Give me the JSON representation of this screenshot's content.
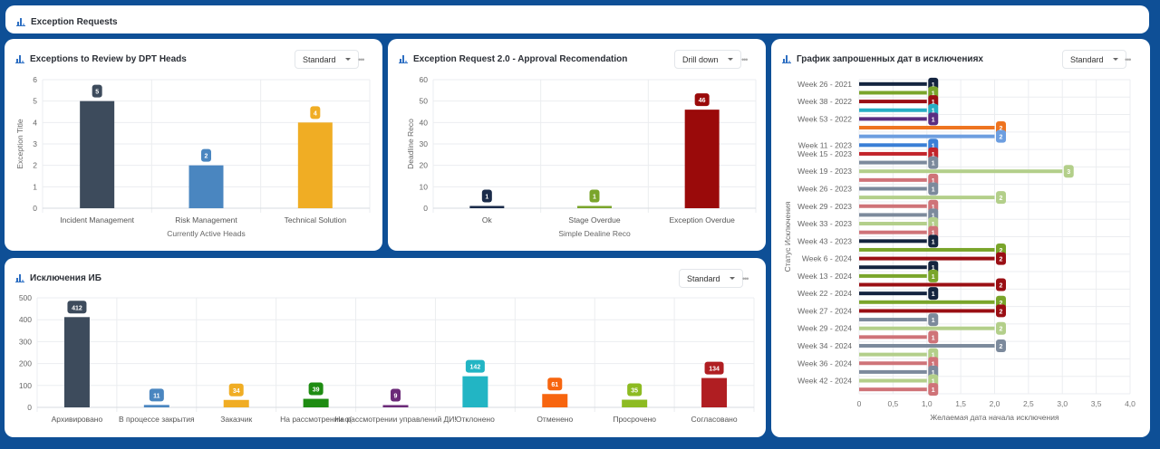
{
  "dashboard": {
    "title": "Exception Requests"
  },
  "panels": [
    {
      "title": "Exceptions to Review by DPT Heads",
      "view": "Standard"
    },
    {
      "title": "Exception Request 2.0 - Approval Recomendation",
      "view": "Drill down"
    },
    {
      "title": "График запрошенных дат в исключениях",
      "view": "Standard"
    },
    {
      "title": "Исключения ИБ",
      "view": "Standard"
    }
  ],
  "more_label": "•••",
  "chart_data": [
    {
      "type": "bar",
      "title": "Exceptions to Review by DPT Heads",
      "xlabel": "Currently Active Heads",
      "ylabel": "Exception Title",
      "ylim": [
        0,
        6
      ],
      "yticks": [
        0,
        1,
        2,
        3,
        4,
        5,
        6
      ],
      "categories": [
        "Incident Management",
        "Risk Management",
        "Technical Solution"
      ],
      "values": [
        5,
        2,
        4
      ],
      "colors": [
        "#3d4b5c",
        "#4a86c0",
        "#f0ad24"
      ],
      "grid": true
    },
    {
      "type": "bar",
      "title": "Exception Request 2.0 - Approval Recomendation",
      "xlabel": "Simple Dealine Reco",
      "ylabel": "Deadline Reco",
      "ylim": [
        0,
        60
      ],
      "yticks": [
        0,
        10,
        20,
        30,
        40,
        50,
        60
      ],
      "categories": [
        "Ok",
        "Stage Overdue",
        "Exception Overdue"
      ],
      "values": [
        1,
        1,
        46
      ],
      "colors": [
        "#1a2b4a",
        "#7aa52b",
        "#9a0a0a"
      ],
      "grid": true
    },
    {
      "type": "bar",
      "orientation": "horizontal",
      "title": "График запрошенных дат в исключениях",
      "xlabel": "Желаемая дата начала исключения",
      "ylabel": "Статус Исключения",
      "xlim": [
        0,
        4
      ],
      "xticks": [
        "0",
        "0,5",
        "1,0",
        "1,5",
        "2,0",
        "2,5",
        "3,0",
        "3,5",
        "4,0"
      ],
      "category_labels": [
        "Week 26 - 2021",
        "Week 38 - 2022",
        "Week 53 - 2022",
        "Week 11 - 2023",
        "Week 15 - 2023",
        "Week 19 - 2023",
        "Week 26 - 2023",
        "Week 29 - 2023",
        "Week 33 - 2023",
        "Week 43 - 2023",
        "Week 6 - 2024",
        "Week 13 - 2024",
        "Week 22 - 2024",
        "Week 27 - 2024",
        "Week 29 - 2024",
        "Week 34 - 2024",
        "Week 36 - 2024",
        "Week 42 - 2024"
      ],
      "bars": [
        {
          "value": 1,
          "color": "#14243f"
        },
        {
          "value": 1,
          "color": "#7aa52b"
        },
        {
          "value": 1,
          "color": "#9a0f14"
        },
        {
          "value": 1,
          "color": "#27aec4"
        },
        {
          "value": 1,
          "color": "#5a2d82"
        },
        {
          "value": 2,
          "color": "#ee7420"
        },
        {
          "value": 2,
          "color": "#6d9ee0"
        },
        {
          "value": 1,
          "color": "#3a7fd6"
        },
        {
          "value": 1,
          "color": "#c2242b"
        },
        {
          "value": 1,
          "color": "#7c8a9c"
        },
        {
          "value": 3,
          "color": "#b3cf8a"
        },
        {
          "value": 1,
          "color": "#cf7378"
        },
        {
          "value": 1,
          "color": "#7c8a9c"
        },
        {
          "value": 2,
          "color": "#b3cf8a"
        },
        {
          "value": 1,
          "color": "#cf7378"
        },
        {
          "value": 1,
          "color": "#7c8a9c"
        },
        {
          "value": 1,
          "color": "#b3cf8a"
        },
        {
          "value": 1,
          "color": "#cf7378"
        },
        {
          "value": 1,
          "color": "#14243f"
        },
        {
          "value": 2,
          "color": "#7aa52b"
        },
        {
          "value": 2,
          "color": "#9a0f14"
        },
        {
          "value": 1,
          "color": "#14243f"
        },
        {
          "value": 1,
          "color": "#7aa52b"
        },
        {
          "value": 2,
          "color": "#9a0f14"
        },
        {
          "value": 1,
          "color": "#14243f"
        },
        {
          "value": 2,
          "color": "#7aa52b"
        },
        {
          "value": 2,
          "color": "#9a0f14"
        },
        {
          "value": 1,
          "color": "#7c8a9c"
        },
        {
          "value": 2,
          "color": "#b3cf8a"
        },
        {
          "value": 1,
          "color": "#cf7378"
        },
        {
          "value": 2,
          "color": "#7c8a9c"
        },
        {
          "value": 1,
          "color": "#b3cf8a"
        },
        {
          "value": 1,
          "color": "#cf7378"
        },
        {
          "value": 1,
          "color": "#7c8a9c"
        },
        {
          "value": 1,
          "color": "#b3cf8a"
        },
        {
          "value": 1,
          "color": "#cf7378"
        }
      ],
      "grid": true
    },
    {
      "type": "bar",
      "title": "Исключения ИБ",
      "xlabel": "",
      "ylabel": "",
      "ylim": [
        0,
        500
      ],
      "yticks": [
        0,
        100,
        200,
        300,
        400,
        500
      ],
      "categories": [
        "Архивировано",
        "В процессе закрытия",
        "Заказчик",
        "На рассмотрении о(",
        "На рассмотрении управлений ДИ!",
        "Отклонено",
        "Отменено",
        "Просрочено",
        "Согласовано"
      ],
      "values": [
        412,
        11,
        34,
        39,
        9,
        142,
        61,
        35,
        134
      ],
      "colors": [
        "#3d4b5c",
        "#4a86c0",
        "#f0ad24",
        "#1e8c12",
        "#6b2a78",
        "#22b5c4",
        "#f7650f",
        "#8dbb22",
        "#b01e22"
      ],
      "grid": true
    }
  ]
}
